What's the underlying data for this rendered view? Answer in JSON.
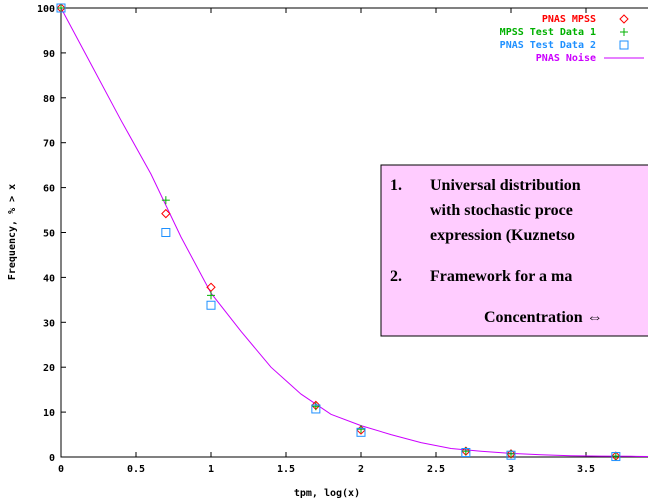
{
  "chart_data": {
    "type": "line",
    "xlabel": "tpm, log(x)",
    "ylabel": "Frequency, % > x",
    "xlim": [
      0,
      4
    ],
    "ylim": [
      0,
      100
    ],
    "xticks": [
      "0",
      "0.5",
      "1",
      "1.5",
      "2",
      "2.5",
      "3",
      "3.5"
    ],
    "yticks": [
      "0",
      "10",
      "20",
      "30",
      "40",
      "50",
      "60",
      "70",
      "80",
      "90",
      "100"
    ],
    "grid": false,
    "legend_position": "top-right",
    "series": [
      {
        "name": "PNAS MPSS",
        "kind": "points",
        "marker": "diamond",
        "color": "#ff0000",
        "x": [
          0,
          0.699,
          1,
          1.699,
          2,
          2.699,
          3,
          3.699
        ],
        "y": [
          100,
          54.2,
          37.8,
          11.5,
          6.0,
          1.3,
          0.7,
          0.2
        ]
      },
      {
        "name": "MPSS Test Data 1",
        "kind": "points",
        "marker": "plus",
        "color": "#00b000",
        "x": [
          0,
          0.699,
          1,
          1.699,
          2,
          2.699,
          3,
          3.699
        ],
        "y": [
          100,
          57.2,
          36.0,
          11.3,
          6.2,
          1.3,
          0.7,
          0.2
        ]
      },
      {
        "name": "PNAS Test Data 2",
        "kind": "points",
        "marker": "square",
        "color": "#1e90ff",
        "x": [
          0,
          0.699,
          1,
          1.699,
          2,
          2.699,
          3,
          3.699
        ],
        "y": [
          100,
          50.0,
          33.8,
          10.7,
          5.5,
          1.0,
          0.4,
          0.1
        ]
      },
      {
        "name": "PNAS Noise",
        "kind": "line",
        "color": "#cc00ff",
        "x": [
          0,
          0.2,
          0.4,
          0.6,
          0.8,
          1.0,
          1.2,
          1.4,
          1.6,
          1.8,
          2.0,
          2.2,
          2.4,
          2.6,
          2.8,
          3.0,
          3.2,
          3.4,
          3.6,
          3.8,
          4.0
        ],
        "y": [
          100,
          87.5,
          75,
          63,
          49,
          36.5,
          28,
          20,
          14,
          9.5,
          7,
          5,
          3.2,
          1.9,
          1.3,
          0.8,
          0.5,
          0.3,
          0.2,
          0.15,
          0.1
        ]
      }
    ]
  },
  "callout": {
    "item1_number": "1.",
    "item1_line1": "Universal distribution",
    "item1_line2": "with stochastic proce",
    "item1_line3": "expression (Kuznetso",
    "item2_number": "2.",
    "item2_line1": "Framework for a ma",
    "item3_line1": "Concentration ⇔",
    "background": "#ffccff",
    "border": "#000000"
  }
}
